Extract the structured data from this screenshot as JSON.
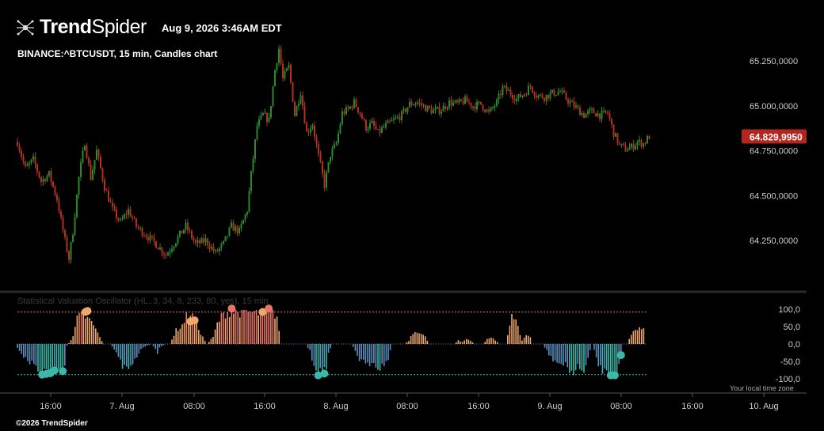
{
  "brand": {
    "trend": "Trend",
    "spider": "Spider"
  },
  "header": {
    "datetime": "Aug 9, 2026 3:46AM EDT",
    "symbol": "BINANCE:^BTCUSDT, 15 min, Candles chart"
  },
  "footer": {
    "copyright": "©2026 TrendSpider",
    "timezone_note": "Your local time zone"
  },
  "colors": {
    "background": "#000000",
    "up_candle": "#2a8a2a",
    "down_candle": "#b0311f",
    "current_price_tag": "#b3261e",
    "osc_positive": "#f0a868",
    "osc_extreme_positive": "#e8756a",
    "osc_negative": "#5b8fbf",
    "osc_extreme_negative": "#3cb8a8",
    "upper_band": "#e07a5f",
    "lower_band": "#3cb8a8"
  },
  "chart_data": [
    {
      "type": "candlestick",
      "title": "BINANCE:^BTCUSDT, 15 min, Candles chart",
      "interval": "15 min",
      "ylim": [
        64070,
        65370
      ],
      "y_ticks": [
        {
          "value": 65250,
          "label": "65.250,0000"
        },
        {
          "value": 65000,
          "label": "65.000,0000"
        },
        {
          "value": 64750,
          "label": "64.750,0000"
        },
        {
          "value": 64500,
          "label": "64.500,0000"
        },
        {
          "value": 64250,
          "label": "64.250,0000"
        }
      ],
      "current_price": {
        "value": 64829.995,
        "label": "64.829,9950"
      },
      "x_ticks": [
        "16:00",
        "7. Aug",
        "08:00",
        "16:00",
        "8. Aug",
        "08:00",
        "16:00",
        "9. Aug",
        "08:00",
        "16:00",
        "10. Aug"
      ],
      "price_path": [
        [
          0,
          64800
        ],
        [
          4,
          64650
        ],
        [
          8,
          64700
        ],
        [
          12,
          64580
        ],
        [
          16,
          64620
        ],
        [
          20,
          64480
        ],
        [
          24,
          64250
        ],
        [
          26,
          64150
        ],
        [
          28,
          64300
        ],
        [
          31,
          64600
        ],
        [
          34,
          64800
        ],
        [
          37,
          64600
        ],
        [
          40,
          64750
        ],
        [
          44,
          64550
        ],
        [
          48,
          64420
        ],
        [
          52,
          64350
        ],
        [
          56,
          64420
        ],
        [
          60,
          64330
        ],
        [
          65,
          64280
        ],
        [
          70,
          64230
        ],
        [
          75,
          64170
        ],
        [
          80,
          64250
        ],
        [
          85,
          64330
        ],
        [
          90,
          64230
        ],
        [
          95,
          64250
        ],
        [
          100,
          64180
        ],
        [
          104,
          64230
        ],
        [
          108,
          64330
        ],
        [
          112,
          64300
        ],
        [
          116,
          64420
        ],
        [
          118,
          64620
        ],
        [
          121,
          64890
        ],
        [
          124,
          64950
        ],
        [
          127,
          64920
        ],
        [
          130,
          65200
        ],
        [
          132,
          65320
        ],
        [
          134,
          65150
        ],
        [
          137,
          65220
        ],
        [
          140,
          64950
        ],
        [
          143,
          65080
        ],
        [
          146,
          64850
        ],
        [
          149,
          64900
        ],
        [
          152,
          64720
        ],
        [
          155,
          64560
        ],
        [
          158,
          64730
        ],
        [
          161,
          64790
        ],
        [
          164,
          64960
        ],
        [
          167,
          64980
        ],
        [
          170,
          65020
        ],
        [
          173,
          64960
        ],
        [
          176,
          64880
        ],
        [
          179,
          64900
        ],
        [
          182,
          64850
        ],
        [
          186,
          64890
        ],
        [
          190,
          64920
        ],
        [
          194,
          64950
        ],
        [
          198,
          65010
        ],
        [
          202,
          65020
        ],
        [
          206,
          64990
        ],
        [
          210,
          64970
        ],
        [
          214,
          64980
        ],
        [
          218,
          65020
        ],
        [
          222,
          65010
        ],
        [
          226,
          65030
        ],
        [
          230,
          65000
        ],
        [
          234,
          65010
        ],
        [
          238,
          64960
        ],
        [
          242,
          65020
        ],
        [
          245,
          65100
        ],
        [
          248,
          65080
        ],
        [
          252,
          65040
        ],
        [
          256,
          65070
        ],
        [
          259,
          65110
        ],
        [
          262,
          65060
        ],
        [
          266,
          65050
        ],
        [
          270,
          65070
        ],
        [
          274,
          65080
        ],
        [
          278,
          65030
        ],
        [
          282,
          64990
        ],
        [
          286,
          64950
        ],
        [
          290,
          64970
        ],
        [
          294,
          64950
        ],
        [
          298,
          64960
        ],
        [
          301,
          64850
        ],
        [
          304,
          64780
        ],
        [
          307,
          64760
        ],
        [
          310,
          64770
        ],
        [
          313,
          64800
        ],
        [
          316,
          64790
        ],
        [
          319,
          64830
        ]
      ]
    },
    {
      "type": "histogram",
      "title": "Statistical Valuation Oscillator (HL..3, 34, 8, 233, 80, yes), 15 min",
      "ylim": [
        -125,
        125
      ],
      "y_ticks": [
        {
          "value": 100,
          "label": "100,0"
        },
        {
          "value": 50,
          "label": "50,0"
        },
        {
          "value": 0,
          "label": "0,0"
        },
        {
          "value": -50,
          "label": "-50,0"
        },
        {
          "value": -100,
          "label": "-100,0"
        }
      ],
      "upper_band": 92,
      "lower_band": -88,
      "bar_path": [
        [
          0,
          -10
        ],
        [
          4,
          -45
        ],
        [
          8,
          -60
        ],
        [
          12,
          -88
        ],
        [
          16,
          -85
        ],
        [
          20,
          -75
        ],
        [
          23,
          -70
        ],
        [
          24,
          -5
        ],
        [
          27,
          20
        ],
        [
          29,
          75
        ],
        [
          31,
          85
        ],
        [
          33,
          80
        ],
        [
          35,
          70
        ],
        [
          37,
          55
        ],
        [
          40,
          20
        ],
        [
          42,
          0
        ],
        [
          45,
          0
        ],
        [
          47,
          -15
        ],
        [
          49,
          -40
        ],
        [
          51,
          -65
        ],
        [
          53,
          -70
        ],
        [
          55,
          -60
        ],
        [
          57,
          -50
        ],
        [
          59,
          -25
        ],
        [
          61,
          -10
        ],
        [
          63,
          -5
        ],
        [
          65,
          0
        ],
        [
          67,
          -15
        ],
        [
          68,
          -25
        ],
        [
          69,
          -10
        ],
        [
          72,
          0
        ],
        [
          74,
          0
        ],
        [
          77,
          40
        ],
        [
          80,
          55
        ],
        [
          82,
          80
        ],
        [
          84,
          92
        ],
        [
          86,
          70
        ],
        [
          88,
          45
        ],
        [
          90,
          20
        ],
        [
          92,
          0
        ],
        [
          95,
          20
        ],
        [
          97,
          60
        ],
        [
          99,
          80
        ],
        [
          101,
          92
        ],
        [
          103,
          95
        ],
        [
          106,
          95
        ],
        [
          109,
          95
        ],
        [
          112,
          95
        ],
        [
          116,
          90
        ],
        [
          120,
          92
        ],
        [
          124,
          95
        ],
        [
          126,
          80
        ],
        [
          128,
          0
        ],
        [
          140,
          0
        ],
        [
          142,
          -20
        ],
        [
          144,
          -70
        ],
        [
          146,
          -85
        ],
        [
          148,
          -85
        ],
        [
          150,
          -75
        ],
        [
          151,
          -30
        ],
        [
          153,
          0
        ],
        [
          162,
          0
        ],
        [
          164,
          -20
        ],
        [
          166,
          -45
        ],
        [
          168,
          -55
        ],
        [
          170,
          -65
        ],
        [
          172,
          -50
        ],
        [
          174,
          -60
        ],
        [
          176,
          -70
        ],
        [
          178,
          -60
        ],
        [
          180,
          -40
        ],
        [
          182,
          0
        ],
        [
          188,
          0
        ],
        [
          190,
          10
        ],
        [
          192,
          30
        ],
        [
          194,
          40
        ],
        [
          196,
          30
        ],
        [
          198,
          20
        ],
        [
          200,
          0
        ],
        [
          212,
          0
        ],
        [
          214,
          10
        ],
        [
          216,
          5
        ],
        [
          218,
          15
        ],
        [
          220,
          10
        ],
        [
          222,
          0
        ],
        [
          226,
          0
        ],
        [
          228,
          15
        ],
        [
          230,
          20
        ],
        [
          232,
          10
        ],
        [
          234,
          0
        ],
        [
          237,
          0
        ],
        [
          239,
          60
        ],
        [
          240,
          80
        ],
        [
          241,
          80
        ],
        [
          242,
          70
        ],
        [
          243,
          55
        ],
        [
          244,
          25
        ],
        [
          245,
          10
        ],
        [
          247,
          30
        ],
        [
          249,
          20
        ],
        [
          250,
          0
        ],
        [
          255,
          0
        ],
        [
          257,
          -20
        ],
        [
          259,
          -40
        ],
        [
          261,
          -50
        ],
        [
          264,
          -60
        ],
        [
          266,
          -65
        ],
        [
          268,
          -75
        ],
        [
          270,
          -85
        ],
        [
          272,
          -70
        ],
        [
          274,
          -80
        ],
        [
          276,
          -65
        ],
        [
          278,
          -20
        ],
        [
          279,
          0
        ],
        [
          280,
          -20
        ],
        [
          282,
          -60
        ],
        [
          284,
          -75
        ],
        [
          286,
          -85
        ],
        [
          288,
          -88
        ],
        [
          290,
          -85
        ],
        [
          292,
          -60
        ],
        [
          293,
          -40
        ],
        [
          294,
          0
        ],
        [
          296,
          0
        ],
        [
          298,
          30
        ],
        [
          300,
          40
        ],
        [
          302,
          45
        ],
        [
          304,
          40
        ]
      ],
      "extreme_markers": [
        {
          "i": 12,
          "value": -88,
          "kind": "low"
        },
        {
          "i": 14,
          "value": -86,
          "kind": "low"
        },
        {
          "i": 16,
          "value": -84,
          "kind": "low"
        },
        {
          "i": 18,
          "value": -76,
          "kind": "low"
        },
        {
          "i": 22,
          "value": -78,
          "kind": "low"
        },
        {
          "i": 33,
          "value": 92,
          "kind": "high"
        },
        {
          "i": 34,
          "value": 95,
          "kind": "high"
        },
        {
          "i": 84,
          "value": 65,
          "kind": "high"
        },
        {
          "i": 86,
          "value": 68,
          "kind": "high"
        },
        {
          "i": 104,
          "value": 102,
          "kind": "high"
        },
        {
          "i": 119,
          "value": 92,
          "kind": "high"
        },
        {
          "i": 122,
          "value": 102,
          "kind": "high"
        },
        {
          "i": 146,
          "value": -90,
          "kind": "low"
        },
        {
          "i": 149,
          "value": -85,
          "kind": "low"
        },
        {
          "i": 288,
          "value": -90,
          "kind": "low"
        },
        {
          "i": 290,
          "value": -90,
          "kind": "low"
        },
        {
          "i": 293,
          "value": -32,
          "kind": "low"
        }
      ]
    }
  ]
}
